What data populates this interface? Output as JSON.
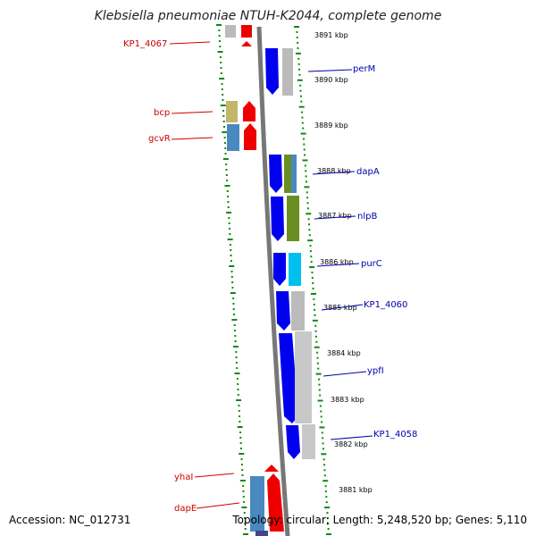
{
  "title": "Klebsiella pneumoniae NTUH-K2044, complete genome",
  "footer": {
    "accession": "Accession: NC_012731",
    "summary": "Topology: circular; Length: 5,248,520 bp; Genes: 5,110"
  },
  "colors": {
    "left_label": "#cc0000",
    "right_label": "#0000aa",
    "backbone": "#777777",
    "ticks": "#118811"
  },
  "ticks": [
    {
      "label": "3891 kbp"
    },
    {
      "label": "3890 kbp"
    },
    {
      "label": "3889 kbp"
    },
    {
      "label": "3888 kbp"
    },
    {
      "label": "3887 kbp"
    },
    {
      "label": "3886 kbp"
    },
    {
      "label": "3885 kbp"
    },
    {
      "label": "3884 kbp"
    },
    {
      "label": "3883 kbp"
    },
    {
      "label": "3882 kbp"
    },
    {
      "label": "3881 kbp"
    }
  ],
  "left_labels": [
    {
      "name": "KP1_4067"
    },
    {
      "name": "bcp"
    },
    {
      "name": "gcvR"
    },
    {
      "name": "yhaI"
    },
    {
      "name": "dapE"
    }
  ],
  "right_labels": [
    {
      "name": "perM"
    },
    {
      "name": "dapA"
    },
    {
      "name": "nlpB"
    },
    {
      "name": "purC"
    },
    {
      "name": "KP1_4060"
    },
    {
      "name": "ypfI"
    },
    {
      "name": "KP1_4058"
    }
  ]
}
